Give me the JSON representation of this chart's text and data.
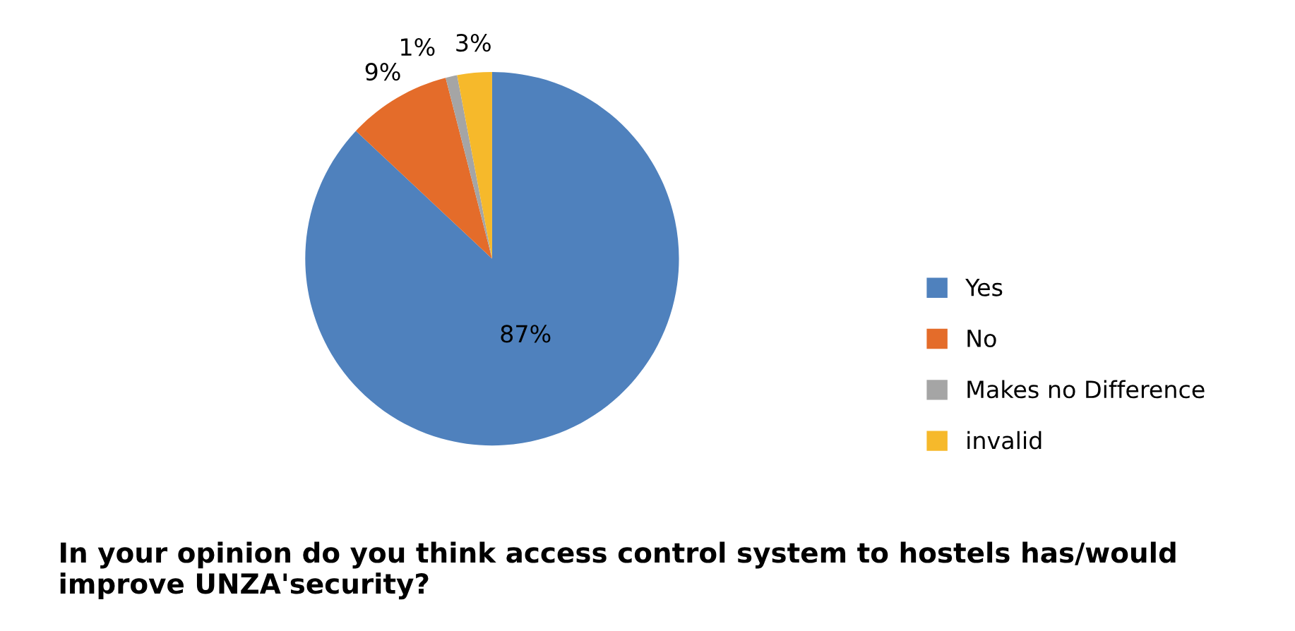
{
  "chart_data": {
    "type": "pie",
    "title": "In your opinion do you think access control system to hostels has/would improve UNZA'security?",
    "categories": [
      "Yes",
      "No",
      "Makes no Difference",
      "invalid"
    ],
    "values": [
      87,
      9,
      1,
      3
    ],
    "value_labels": [
      "87%",
      "9%",
      "1%",
      "3%"
    ],
    "colors": [
      "#4f81bd",
      "#e46c2a",
      "#a5a5a5",
      "#f6b92b"
    ],
    "legend": "right"
  }
}
